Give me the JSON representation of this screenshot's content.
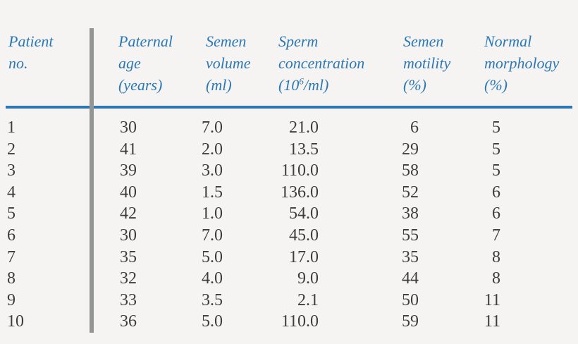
{
  "figure": {
    "background_color": "#f5f4f2",
    "accent_blue": "#2b78b4",
    "divider_gray": "#949494",
    "body_text_color": "#3d3d3d"
  },
  "table": {
    "headers": {
      "patient_no": {
        "line1": "Patient",
        "line2": "no."
      },
      "paternal_age": {
        "line1": "Paternal",
        "line2": "age",
        "line3": "(years)"
      },
      "semen_volume": {
        "line1": "Semen",
        "line2": "volume",
        "line3": "(ml)"
      },
      "sperm_concentration": {
        "line1": "Sperm",
        "line2": "concentration",
        "line3_pre": "(10",
        "line3_sup": "6",
        "line3_post": "/ml)"
      },
      "semen_motility": {
        "line1": "Semen",
        "line2": "motility",
        "line3": "(%)"
      },
      "normal_morphology": {
        "line1": "Normal",
        "line2": "morphology",
        "line3": "(%)"
      }
    },
    "rows": [
      {
        "patient_no": "1",
        "paternal_age": "30",
        "semen_volume": "7.0",
        "sperm_concentration": "21.0",
        "semen_motility": "6",
        "normal_morphology": "5"
      },
      {
        "patient_no": "2",
        "paternal_age": "41",
        "semen_volume": "2.0",
        "sperm_concentration": "13.5",
        "semen_motility": "29",
        "normal_morphology": "5"
      },
      {
        "patient_no": "3",
        "paternal_age": "39",
        "semen_volume": "3.0",
        "sperm_concentration": "110.0",
        "semen_motility": "58",
        "normal_morphology": "5"
      },
      {
        "patient_no": "4",
        "paternal_age": "40",
        "semen_volume": "1.5",
        "sperm_concentration": "136.0",
        "semen_motility": "52",
        "normal_morphology": "6"
      },
      {
        "patient_no": "5",
        "paternal_age": "42",
        "semen_volume": "1.0",
        "sperm_concentration": "54.0",
        "semen_motility": "38",
        "normal_morphology": "6"
      },
      {
        "patient_no": "6",
        "paternal_age": "30",
        "semen_volume": "7.0",
        "sperm_concentration": "45.0",
        "semen_motility": "55",
        "normal_morphology": "7"
      },
      {
        "patient_no": "7",
        "paternal_age": "35",
        "semen_volume": "5.0",
        "sperm_concentration": "17.0",
        "semen_motility": "35",
        "normal_morphology": "8"
      },
      {
        "patient_no": "8",
        "paternal_age": "32",
        "semen_volume": "4.0",
        "sperm_concentration": "9.0",
        "semen_motility": "44",
        "normal_morphology": "8"
      },
      {
        "patient_no": "9",
        "paternal_age": "33",
        "semen_volume": "3.5",
        "sperm_concentration": "2.1",
        "semen_motility": "50",
        "normal_morphology": "11"
      },
      {
        "patient_no": "10",
        "paternal_age": "36",
        "semen_volume": "5.0",
        "sperm_concentration": "110.0",
        "semen_motility": "59",
        "normal_morphology": "11"
      }
    ]
  },
  "chart_data": {
    "type": "table",
    "title": "",
    "columns": [
      "Patient no.",
      "Paternal age (years)",
      "Semen volume (ml)",
      "Sperm concentration (10^6/ml)",
      "Semen motility (%)",
      "Normal morphology (%)"
    ],
    "values": [
      [
        1,
        30,
        7.0,
        21.0,
        6,
        5
      ],
      [
        2,
        41,
        2.0,
        13.5,
        29,
        5
      ],
      [
        3,
        39,
        3.0,
        110.0,
        58,
        5
      ],
      [
        4,
        40,
        1.5,
        136.0,
        52,
        6
      ],
      [
        5,
        42,
        1.0,
        54.0,
        38,
        6
      ],
      [
        6,
        30,
        7.0,
        45.0,
        55,
        7
      ],
      [
        7,
        35,
        5.0,
        17.0,
        35,
        8
      ],
      [
        8,
        32,
        4.0,
        9.0,
        44,
        8
      ],
      [
        9,
        33,
        3.5,
        2.1,
        50,
        11
      ],
      [
        10,
        36,
        5.0,
        110.0,
        59,
        11
      ]
    ]
  }
}
